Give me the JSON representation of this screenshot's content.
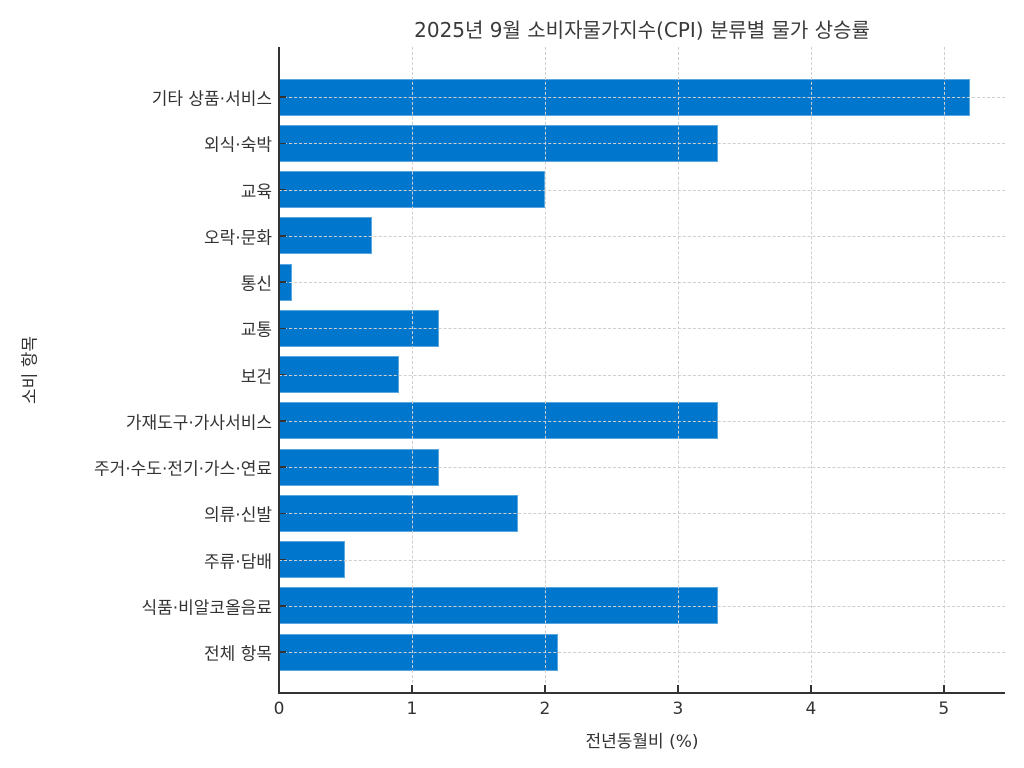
{
  "chart_data": {
    "type": "bar",
    "orientation": "horizontal",
    "title": "2025년 9월 소비자물가지수(CPI) 분류별 물가 상승률",
    "xlabel": "전년동월비 (%)",
    "ylabel": "소비 항목",
    "xlim": [
      0,
      5.46
    ],
    "xticks": [
      "0",
      "1",
      "2",
      "3",
      "4",
      "5"
    ],
    "grid": true,
    "bar_color": "#0077cc",
    "categories": [
      "기타 상품·서비스",
      "외식·숙박",
      "교육",
      "오락·문화",
      "통신",
      "교통",
      "보건",
      "가재도구·가사서비스",
      "주거·수도·전기·가스·연료",
      "의류·신발",
      "주류·담배",
      "식품·비알코올음료",
      "전체 항목"
    ],
    "values": [
      5.2,
      3.3,
      2.0,
      0.7,
      0.1,
      1.2,
      0.9,
      3.3,
      1.2,
      1.8,
      0.5,
      3.3,
      2.1
    ]
  }
}
